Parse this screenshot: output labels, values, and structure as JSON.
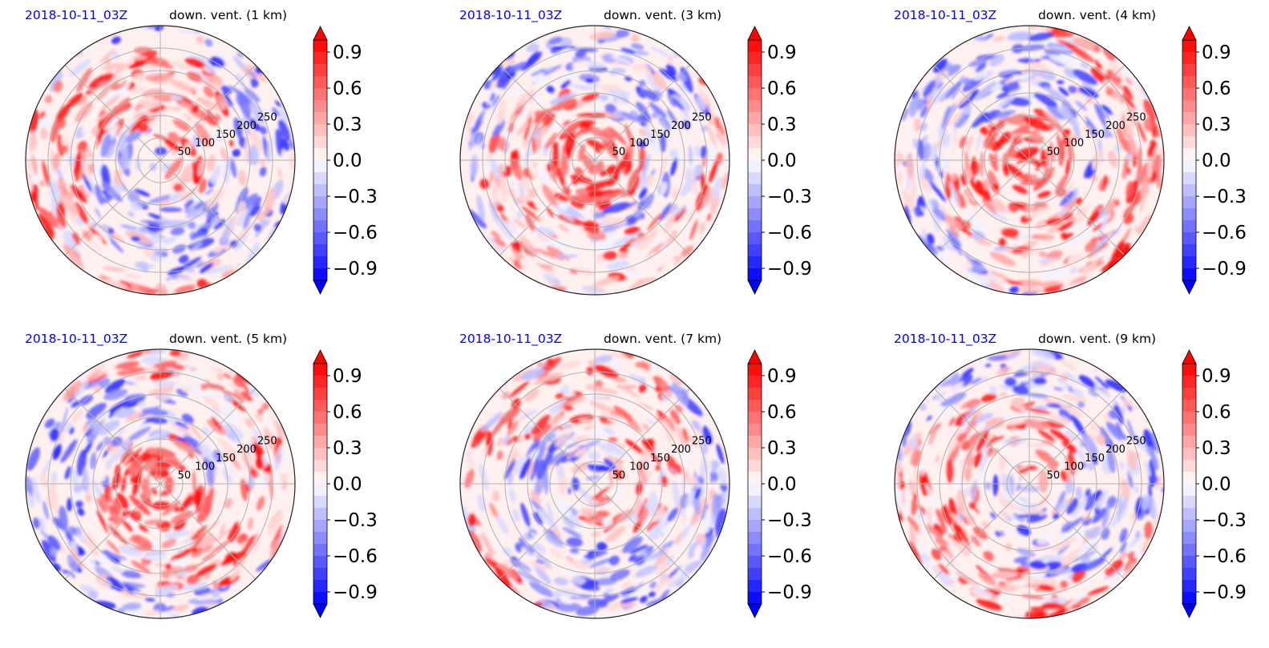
{
  "figure": {
    "colorbar": {
      "ticks": [
        0.9,
        0.6,
        0.3,
        0.0,
        -0.3,
        -0.6,
        -0.9
      ],
      "tick_labels": [
        "0.9",
        "0.6",
        "0.3",
        "0.0",
        "−0.3",
        "−0.6",
        "−0.9"
      ],
      "range": [
        -1.0,
        1.0
      ],
      "levels": 20,
      "extend": "both",
      "cmap": "bwr"
    },
    "radial_ticks": [
      "50",
      "100",
      "150",
      "200",
      "250"
    ],
    "colors": {
      "date": "#0000ff",
      "positive": "#ff0000",
      "negative": "#0000ff",
      "grid": "#b0b0b0"
    }
  },
  "chart_data": [
    {
      "type": "heatmap",
      "date": "2018-10-11_03Z",
      "title": "down. vent. (1 km)",
      "height_km": 1,
      "rlim": [
        0,
        300
      ]
    },
    {
      "type": "heatmap",
      "date": "2018-10-11_03Z",
      "title": "down. vent. (3 km)",
      "height_km": 3,
      "rlim": [
        0,
        300
      ]
    },
    {
      "type": "heatmap",
      "date": "2018-10-11_03Z",
      "title": "down. vent. (4 km)",
      "height_km": 4,
      "rlim": [
        0,
        300
      ]
    },
    {
      "type": "heatmap",
      "date": "2018-10-11_03Z",
      "title": "down. vent. (5 km)",
      "height_km": 5,
      "rlim": [
        0,
        300
      ]
    },
    {
      "type": "heatmap",
      "date": "2018-10-11_03Z",
      "title": "down. vent. (7 km)",
      "height_km": 7,
      "rlim": [
        0,
        300
      ]
    },
    {
      "type": "heatmap",
      "date": "2018-10-11_03Z",
      "title": "down. vent. (9 km)",
      "height_km": 9,
      "rlim": [
        0,
        300
      ]
    }
  ]
}
